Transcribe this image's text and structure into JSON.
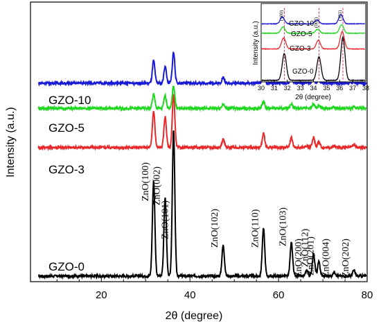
{
  "chart_data": [
    {
      "type": "line",
      "xlabel": "2θ (degree)",
      "ylabel": "Intensity (a.u.)",
      "xlim": [
        4,
        80
      ],
      "xticks": [
        20,
        40,
        60,
        80
      ],
      "tick_labels": [
        "20",
        "40",
        "60",
        "80"
      ],
      "ylim": [
        0,
        100
      ],
      "grid": false,
      "peaks_x": [
        31.8,
        34.4,
        36.3,
        47.5,
        56.6,
        62.9,
        66.4,
        67.9,
        69.1,
        72.6,
        77.0
      ],
      "series": [
        {
          "name": "GZO-0",
          "color": "#000000",
          "baseline": 2,
          "heights": [
            34,
            28,
            52,
            11,
            17,
            12,
            2,
            8,
            5,
            1.5,
            2
          ]
        },
        {
          "name": "GZO-3",
          "color": "#e8282b",
          "baseline": 48,
          "heights": [
            13,
            11,
            19,
            3,
            5,
            3.5,
            0.5,
            3.5,
            2,
            0.5,
            1
          ]
        },
        {
          "name": "GZO-5",
          "color": "#21d821",
          "baseline": 62,
          "heights": [
            5,
            4.5,
            8,
            1.5,
            2.5,
            1.5,
            0.3,
            1.5,
            1,
            0.3,
            0.4
          ]
        },
        {
          "name": "GZO-10",
          "color": "#1919d6",
          "baseline": 71,
          "heights": [
            8,
            6,
            11,
            2,
            3.5,
            2,
            0.3,
            1.5,
            1,
            0.3,
            0.4
          ]
        }
      ],
      "annotations": [
        "ZnO(100)",
        "ZnO(002)",
        "ZnO(101)",
        "ZnO(102)",
        "ZnO(110)",
        "ZnO(103)",
        "ZnO(200)",
        "ZnO(112)",
        "ZnO(201)",
        "ZnO(004)",
        "ZnO(202)"
      ],
      "annotation_x": [
        31.8,
        34.4,
        36.3,
        47.5,
        56.6,
        62.9,
        66.4,
        67.9,
        69.1,
        72.6,
        77.0
      ]
    },
    {
      "type": "line",
      "xlabel": "2θ (degree)",
      "ylabel": "Intensity (a.u.)",
      "xlim": [
        30,
        38
      ],
      "xticks": [
        30,
        31,
        32,
        33,
        34,
        35,
        36,
        37,
        38
      ],
      "tick_labels": [
        "30",
        "31",
        "32",
        "33",
        "34",
        "35",
        "36",
        "37",
        "38"
      ],
      "ylim": [
        0,
        100
      ],
      "grid": false,
      "peaks_x": [
        31.77,
        34.42,
        36.25
      ],
      "series": [
        {
          "name": "GZO-0",
          "color": "#000000",
          "baseline": 2,
          "heights": [
            34,
            30,
            55
          ],
          "shift": 0
        },
        {
          "name": "GZO-3",
          "color": "#e8282b",
          "baseline": 42,
          "heights": [
            14,
            11,
            22
          ],
          "shift": 0.05
        },
        {
          "name": "GZO-5",
          "color": "#21d821",
          "baseline": 62,
          "heights": [
            8,
            5,
            11
          ],
          "shift": 0.1
        },
        {
          "name": "GZO-10",
          "color": "#1919d6",
          "baseline": 74,
          "heights": [
            9,
            5,
            12
          ],
          "shift": 0.15
        }
      ],
      "annotations": [
        "(100)",
        "(002)",
        "(101)"
      ],
      "annotation_x": [
        31.77,
        34.42,
        36.25
      ]
    }
  ]
}
